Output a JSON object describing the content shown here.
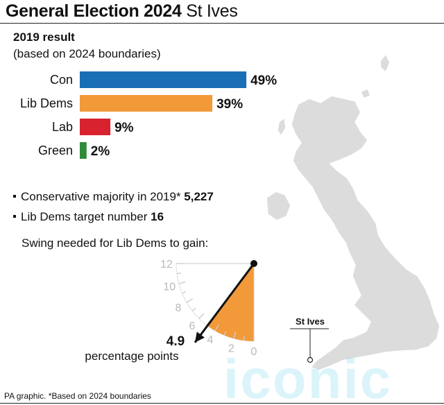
{
  "header": {
    "title_bold": "General Election 2024",
    "title_constituency": "St Ives"
  },
  "result": {
    "heading": "2019 result",
    "note": "(based on 2024 boundaries)"
  },
  "chart_data": [
    {
      "type": "bar",
      "orientation": "horizontal",
      "title": "2019 result",
      "subtitle": "(based on 2024 boundaries)",
      "categories": [
        "Con",
        "Lib Dems",
        "Lab",
        "Green"
      ],
      "values": [
        49,
        39,
        9,
        2
      ],
      "value_labels": [
        "49%",
        "39%",
        "9%",
        "2%"
      ],
      "colors": [
        "#1a6eb5",
        "#f29a3a",
        "#d8222f",
        "#2e8b3a"
      ],
      "xlim": [
        0,
        100
      ],
      "grid": false
    },
    {
      "type": "gauge",
      "title": "Swing needed for Lib Dems to gain:",
      "value": 4.9,
      "value_label": "4.9",
      "unit_label": "percentage points",
      "scale_ticks": [
        "12",
        "10",
        "8",
        "6",
        "4",
        "2",
        "0"
      ],
      "range": [
        0,
        12
      ],
      "fill_color": "#f29a3a"
    }
  ],
  "stats": {
    "majority_label": "Conservative majority in 2019*",
    "majority_value": "5,227",
    "target_label": "Lib Dems target number",
    "target_value": "16"
  },
  "map": {
    "location_label": "St Ives",
    "land_color": "#dcdcdc"
  },
  "watermark": "iconic",
  "footer": "PA graphic. *Based on 2024 boundaries"
}
